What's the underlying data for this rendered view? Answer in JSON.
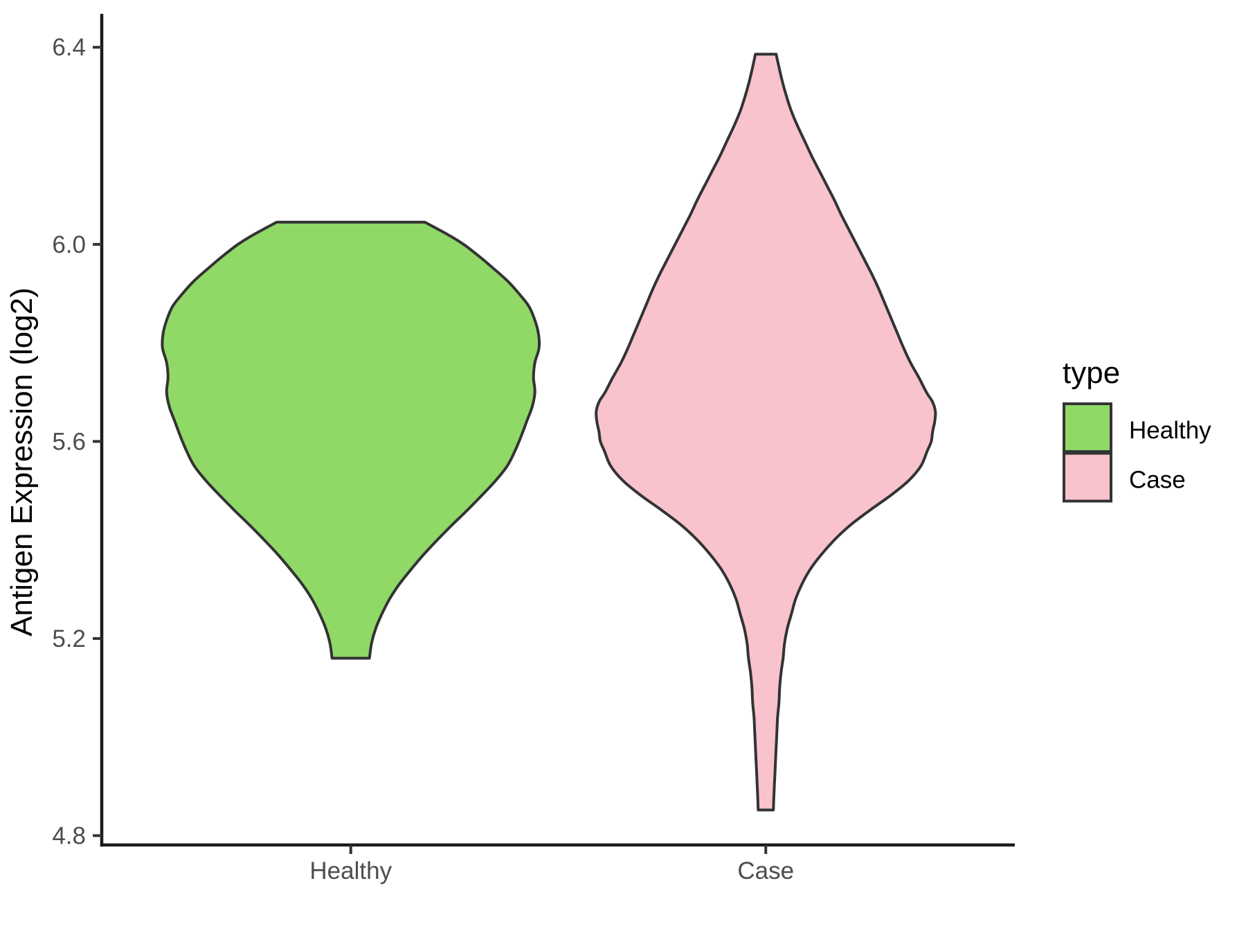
{
  "chart_data": {
    "type": "violin",
    "title": "",
    "xlabel": "",
    "ylabel": "Antigen Expression (log2)",
    "categories": [
      "Healthy",
      "Case"
    ],
    "y_ticks": [
      "4.8",
      "5.2",
      "5.6",
      "6.0",
      "6.4"
    ],
    "ylim": [
      4.781,
      6.465
    ],
    "grid": false,
    "panel_background": "#ffffff",
    "style": {
      "axis_line_color": "#1a1a1a",
      "tick_text_color": "#4d4d4d",
      "violin_outline_color": "#333333"
    },
    "legend": {
      "title": "type",
      "position": "right",
      "entries": [
        {
          "label": "Healthy",
          "color": "#90D967"
        },
        {
          "label": "Case",
          "color": "#F8C3CD"
        }
      ]
    },
    "series": [
      {
        "name": "Healthy",
        "fill": "#90D967",
        "outline": "#333333",
        "min": 5.16,
        "max": 6.05,
        "widest_at": 5.8,
        "profile_value_halfwidth": [
          [
            6.045,
            107
          ],
          [
            6.02,
            140
          ],
          [
            6.0,
            163
          ],
          [
            5.975,
            186
          ],
          [
            5.95,
            207
          ],
          [
            5.925,
            227
          ],
          [
            5.9,
            243
          ],
          [
            5.875,
            257
          ],
          [
            5.85,
            265
          ],
          [
            5.82,
            271
          ],
          [
            5.79,
            272
          ],
          [
            5.76,
            266
          ],
          [
            5.73,
            264
          ],
          [
            5.7,
            266
          ],
          [
            5.67,
            262
          ],
          [
            5.64,
            254
          ],
          [
            5.61,
            246
          ],
          [
            5.58,
            237
          ],
          [
            5.55,
            226
          ],
          [
            5.52,
            209
          ],
          [
            5.49,
            189
          ],
          [
            5.46,
            168
          ],
          [
            5.43,
            146
          ],
          [
            5.4,
            125
          ],
          [
            5.37,
            105
          ],
          [
            5.34,
            87
          ],
          [
            5.31,
            70
          ],
          [
            5.28,
            56
          ],
          [
            5.25,
            45
          ],
          [
            5.22,
            36
          ],
          [
            5.19,
            30
          ],
          [
            5.16,
            27
          ]
        ]
      },
      {
        "name": "Case",
        "fill": "#F8C3CD",
        "outline": "#333333",
        "min": 4.85,
        "max": 6.39,
        "widest_at": 5.66,
        "profile_value_halfwidth": [
          [
            6.386,
            15
          ],
          [
            6.36,
            19
          ],
          [
            6.33,
            24
          ],
          [
            6.3,
            30
          ],
          [
            6.27,
            37
          ],
          [
            6.24,
            46
          ],
          [
            6.21,
            56
          ],
          [
            6.18,
            66
          ],
          [
            6.15,
            77
          ],
          [
            6.12,
            88
          ],
          [
            6.09,
            99
          ],
          [
            6.06,
            109
          ],
          [
            6.03,
            120
          ],
          [
            6.0,
            131
          ],
          [
            5.97,
            142
          ],
          [
            5.94,
            153
          ],
          [
            5.91,
            163
          ],
          [
            5.88,
            172
          ],
          [
            5.85,
            181
          ],
          [
            5.82,
            190
          ],
          [
            5.79,
            199
          ],
          [
            5.76,
            209
          ],
          [
            5.73,
            221
          ],
          [
            5.7,
            232
          ],
          [
            5.68,
            241
          ],
          [
            5.66,
            245
          ],
          [
            5.64,
            244
          ],
          [
            5.62,
            241
          ],
          [
            5.6,
            239
          ],
          [
            5.58,
            233
          ],
          [
            5.55,
            224
          ],
          [
            5.52,
            206
          ],
          [
            5.49,
            180
          ],
          [
            5.46,
            150
          ],
          [
            5.43,
            122
          ],
          [
            5.4,
            99
          ],
          [
            5.37,
            80
          ],
          [
            5.34,
            64
          ],
          [
            5.31,
            52
          ],
          [
            5.28,
            43
          ],
          [
            5.25,
            37
          ],
          [
            5.22,
            31
          ],
          [
            5.19,
            27
          ],
          [
            5.16,
            25
          ],
          [
            5.13,
            22
          ],
          [
            5.1,
            20
          ],
          [
            5.07,
            19
          ],
          [
            5.04,
            17
          ],
          [
            5.01,
            16
          ],
          [
            4.98,
            15
          ],
          [
            4.95,
            14
          ],
          [
            4.92,
            13
          ],
          [
            4.89,
            12
          ],
          [
            4.852,
            11
          ]
        ]
      }
    ]
  }
}
